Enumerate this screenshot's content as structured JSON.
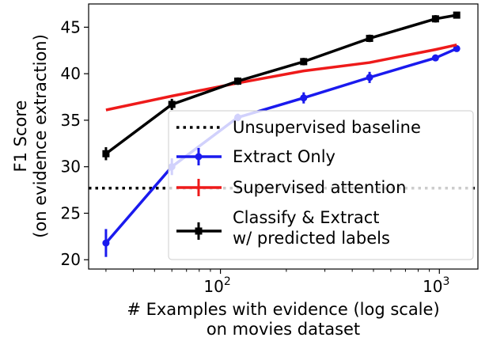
{
  "chart_data": {
    "type": "line",
    "xscale": "log",
    "xlim": [
      25,
      1500
    ],
    "ylim": [
      19,
      47.5
    ],
    "xticks": [
      {
        "value": 100,
        "base": "10",
        "exp": "2"
      },
      {
        "value": 1000,
        "base": "10",
        "exp": "3"
      }
    ],
    "yticks": [
      20,
      25,
      30,
      35,
      40,
      45
    ],
    "xlabel": [
      "# Examples with evidence (log scale)",
      "on movies dataset"
    ],
    "ylabel": [
      "F1 Score",
      "(on evidence extraction)"
    ],
    "legend_position": "lower-right",
    "series": [
      {
        "name": "Unsupervised baseline",
        "color": "#000000",
        "style": "dotted",
        "horizontal": true,
        "y": 27.7
      },
      {
        "name": "Extract Only",
        "color": "#1a1aee",
        "style": "solid",
        "marker": "circle",
        "x": [
          30,
          60,
          120,
          240,
          480,
          960,
          1200
        ],
        "y": [
          21.8,
          30.0,
          35.3,
          37.4,
          39.6,
          41.7,
          42.7
        ],
        "err": [
          1.5,
          0.9,
          0.4,
          0.6,
          0.6,
          0.3,
          0.3
        ]
      },
      {
        "name": "Supervised attention",
        "color": "#ee1a1a",
        "style": "solid",
        "marker": "none",
        "x": [
          30,
          60,
          120,
          240,
          480,
          960,
          1200
        ],
        "y": [
          36.1,
          37.6,
          39.0,
          40.3,
          41.2,
          42.6,
          43.1
        ],
        "err": [
          0,
          0,
          0,
          0,
          0,
          0,
          0
        ]
      },
      {
        "name": "Classify & Extract\nw/ predicted labels",
        "color": "#000000",
        "style": "solid",
        "marker": "square",
        "x": [
          30,
          60,
          120,
          240,
          480,
          960,
          1200
        ],
        "y": [
          31.4,
          36.7,
          39.2,
          41.3,
          43.8,
          45.9,
          46.3
        ],
        "err": [
          0.7,
          0.6,
          0.4,
          0.4,
          0.4,
          0.4,
          0.3
        ]
      }
    ]
  }
}
